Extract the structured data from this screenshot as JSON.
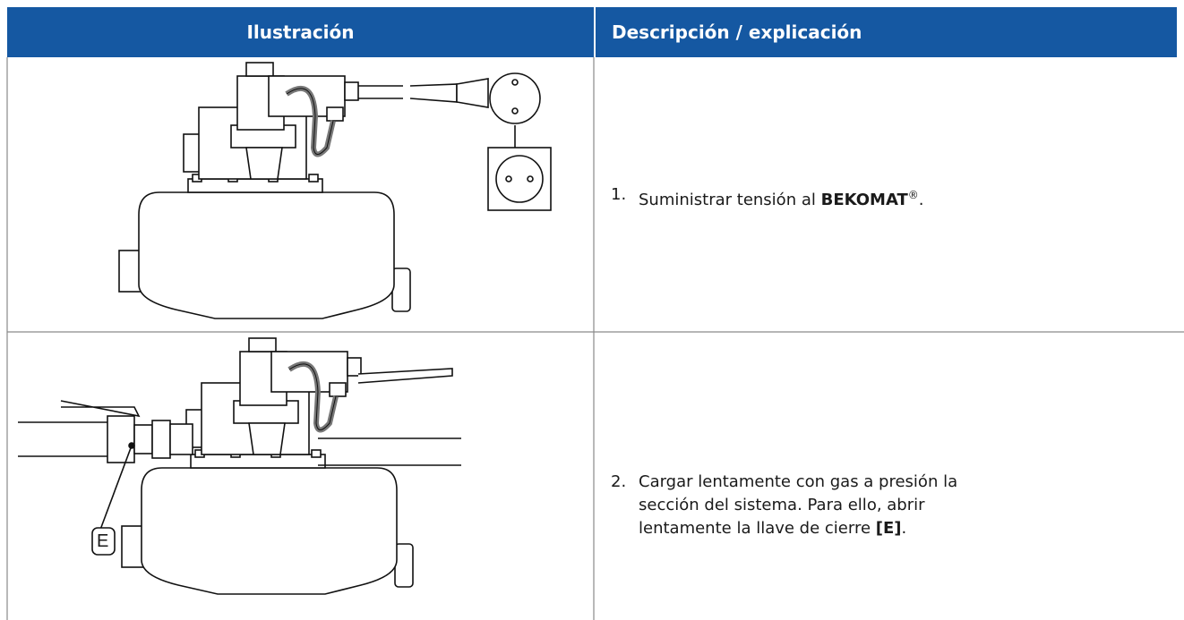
{
  "table": {
    "header": [
      "Ilustración",
      "Descripción / explicación"
    ],
    "rows": [
      {
        "number": "1.",
        "text": [
          "Suministrar tensión al ",
          "BEKOMAT",
          "®",
          "."
        ]
      },
      {
        "illustration_label": "E",
        "number": "2.",
        "text": [
          "Cargar lentamente con gas a presión la sección del sistema. Para ello, abrir lentamente la llave de cierre ",
          "[E]",
          "."
        ]
      }
    ]
  }
}
